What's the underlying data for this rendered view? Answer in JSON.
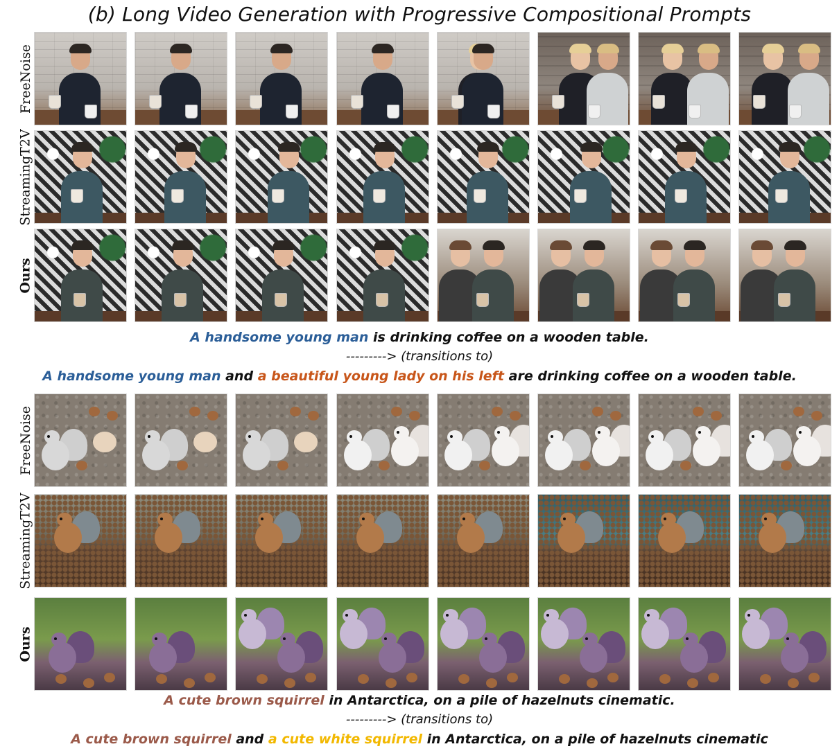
{
  "title": "(b) Long Video Generation with Progressive Compositional Prompts",
  "groups": [
    {
      "rows": [
        {
          "label": "FreeNoise",
          "bold": false,
          "theme": "brick",
          "frames": 8
        },
        {
          "label": "StreamingT2V",
          "bold": false,
          "theme": "leaf",
          "frames": 8
        },
        {
          "label": "Ours",
          "bold": true,
          "theme": "leaf-cafe",
          "frames": 8
        }
      ],
      "caption_line1": {
        "part1": "A handsome young man",
        "part2": " is drinking coffee on a wooden table."
      },
      "arrow_text": "---------> (transitions to)",
      "caption_line2": {
        "part1": "A handsome young man",
        "part2": " and ",
        "part3": "a beautiful young lady on his left",
        "part4": " are drinking coffee on a wooden table."
      }
    },
    {
      "rows": [
        {
          "label": "FreeNoise",
          "bold": false,
          "theme": "ground",
          "frames": 8
        },
        {
          "label": "StreamingT2V",
          "bold": false,
          "theme": "nuts",
          "frames": 8
        },
        {
          "label": "Ours",
          "bold": true,
          "theme": "grass",
          "frames": 8
        }
      ],
      "caption_line1": {
        "part1": "A cute brown squirrel",
        "part2": " in Antarctica, on a pile of hazelnuts cinematic."
      },
      "arrow_text": "---------> (transitions to)",
      "caption_line2": {
        "part1": "A cute brown squirrel",
        "part2": " and ",
        "part3": "a cute white squirrel",
        "part4": " in Antarctica, on a pile of hazelnuts cinematic"
      }
    }
  ],
  "colors": {
    "blue": "#2b5e98",
    "orange": "#c8561a",
    "brown": "#9b5a4a",
    "yellow": "#f2b800"
  }
}
